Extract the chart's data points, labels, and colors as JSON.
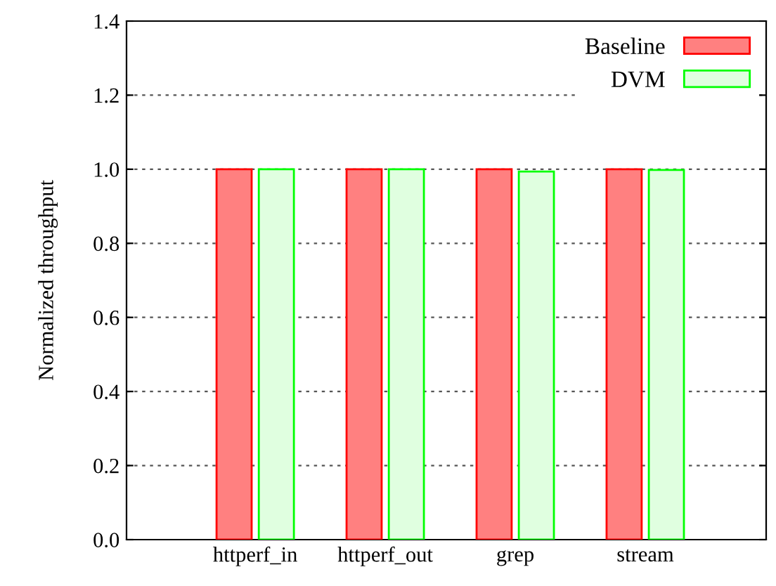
{
  "chart_data": {
    "type": "bar",
    "ylabel": "Normalized throughput",
    "categories": [
      "httperf_in",
      "httperf_out",
      "grep",
      "stream"
    ],
    "series": [
      {
        "name": "Baseline",
        "color": "#ff8080",
        "values": [
          1.0,
          1.0,
          1.0,
          1.0
        ]
      },
      {
        "name": "DVM",
        "color": "#e0ffe0",
        "values": [
          1.0,
          1.0,
          0.994,
          0.998
        ]
      }
    ],
    "ylim": [
      0,
      1.4
    ],
    "yticks": [
      {
        "value": 0,
        "label": "0.0"
      },
      {
        "value": 0.2,
        "label": "0.2"
      },
      {
        "value": 0.4,
        "label": "0.4"
      },
      {
        "value": 0.6,
        "label": "0.6"
      },
      {
        "value": 0.8,
        "label": "0.8"
      },
      {
        "value": 1.0,
        "label": "1.0"
      },
      {
        "value": 1.2,
        "label": "1.2"
      },
      {
        "value": 1.4,
        "label": "1.4"
      }
    ],
    "grid": "y",
    "legend": "top right"
  }
}
